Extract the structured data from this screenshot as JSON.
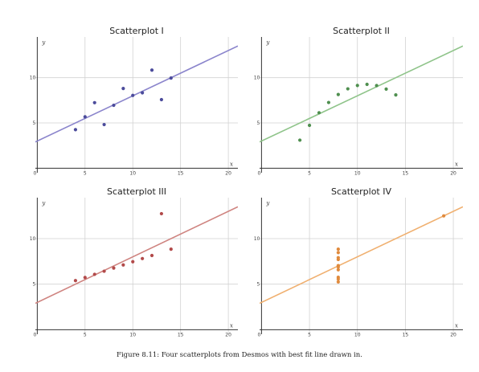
{
  "caption": "Figure 8.11: Four scatterplots from Desmos with best fit line drawn in.",
  "chart_data": [
    {
      "type": "scatter",
      "title": "Scatterplot I",
      "xlabel": "x",
      "ylabel": "y",
      "xlim": [
        -0.2,
        21
      ],
      "ylim": [
        -0.5,
        14.5
      ],
      "xticks": [
        0,
        5,
        10,
        15,
        20
      ],
      "yticks": [
        5,
        10
      ],
      "grid": true,
      "color": "#4b4b9b",
      "line_color": "#8b85cc",
      "points": [
        [
          4,
          4.26
        ],
        [
          5,
          5.68
        ],
        [
          6,
          7.24
        ],
        [
          7,
          4.82
        ],
        [
          8,
          6.95
        ],
        [
          9,
          8.81
        ],
        [
          10,
          8.04
        ],
        [
          11,
          8.33
        ],
        [
          12,
          10.84
        ],
        [
          13,
          7.58
        ],
        [
          14,
          9.96
        ]
      ],
      "fit": {
        "slope": 0.5,
        "intercept": 3.0
      }
    },
    {
      "type": "scatter",
      "title": "Scatterplot II",
      "xlabel": "x",
      "ylabel": "y",
      "xlim": [
        -0.2,
        21
      ],
      "ylim": [
        -0.5,
        14.5
      ],
      "xticks": [
        0,
        5,
        10,
        15,
        20
      ],
      "yticks": [
        5,
        10
      ],
      "grid": true,
      "color": "#4f8f4f",
      "line_color": "#8fc48a",
      "points": [
        [
          4,
          3.1
        ],
        [
          5,
          4.74
        ],
        [
          6,
          6.13
        ],
        [
          7,
          7.26
        ],
        [
          8,
          8.14
        ],
        [
          9,
          8.77
        ],
        [
          10,
          9.14
        ],
        [
          11,
          9.26
        ],
        [
          12,
          9.13
        ],
        [
          13,
          8.74
        ],
        [
          14,
          8.1
        ]
      ],
      "fit": {
        "slope": 0.5,
        "intercept": 3.0
      }
    },
    {
      "type": "scatter",
      "title": "Scatterplot III",
      "xlabel": "x",
      "ylabel": "y",
      "xlim": [
        -0.2,
        21
      ],
      "ylim": [
        -0.5,
        14.5
      ],
      "xticks": [
        0,
        5,
        10,
        15,
        20
      ],
      "yticks": [
        5,
        10
      ],
      "grid": true,
      "color": "#b24a4a",
      "line_color": "#cf8480",
      "points": [
        [
          4,
          5.39
        ],
        [
          5,
          5.73
        ],
        [
          6,
          6.08
        ],
        [
          7,
          6.42
        ],
        [
          8,
          6.77
        ],
        [
          9,
          7.11
        ],
        [
          10,
          7.46
        ],
        [
          11,
          7.81
        ],
        [
          12,
          8.15
        ],
        [
          13,
          12.74
        ],
        [
          14,
          8.84
        ]
      ],
      "fit": {
        "slope": 0.5,
        "intercept": 3.0
      }
    },
    {
      "type": "scatter",
      "title": "Scatterplot IV",
      "xlabel": "x",
      "ylabel": "y",
      "xlim": [
        -0.2,
        21
      ],
      "ylim": [
        -0.5,
        14.5
      ],
      "xticks": [
        0,
        5,
        10,
        15,
        20
      ],
      "yticks": [
        5,
        10
      ],
      "grid": true,
      "color": "#e08a3c",
      "line_color": "#f0b070",
      "points": [
        [
          8,
          6.58
        ],
        [
          8,
          5.76
        ],
        [
          8,
          7.71
        ],
        [
          8,
          8.84
        ],
        [
          8,
          8.47
        ],
        [
          8,
          7.04
        ],
        [
          8,
          5.25
        ],
        [
          19,
          12.5
        ],
        [
          8,
          5.56
        ],
        [
          8,
          7.91
        ],
        [
          8,
          6.89
        ]
      ],
      "fit": {
        "slope": 0.5,
        "intercept": 3.0
      }
    }
  ]
}
